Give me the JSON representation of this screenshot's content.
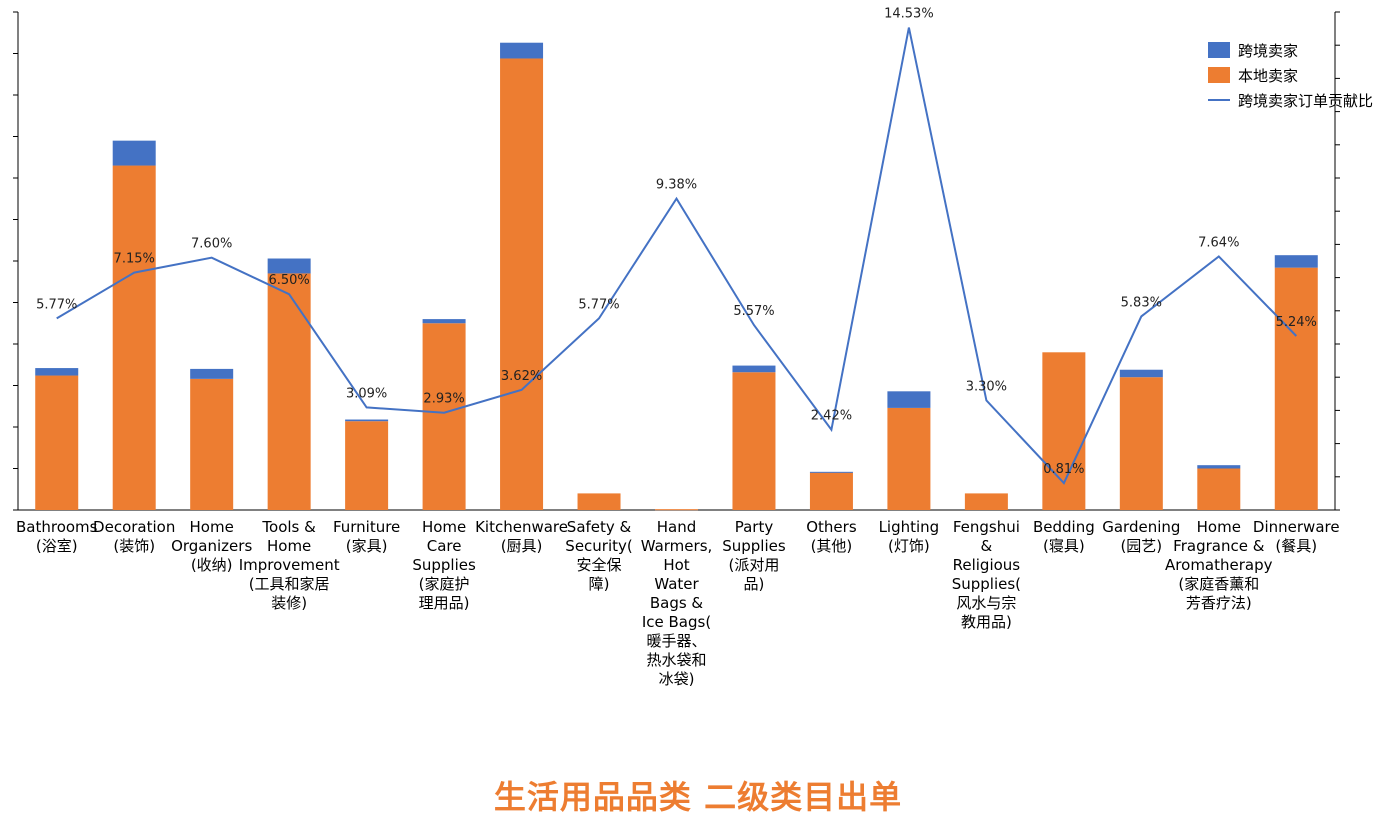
{
  "chart_data": {
    "type": "bar",
    "stacked": true,
    "title": "生活用品品类 二级类目出单",
    "categories": [
      "Bathrooms (浴室)",
      "Decoration (装饰)",
      "Home Organizers (收纳)",
      "Tools & Home Improvement (工具和家居装修)",
      "Furniture (家具)",
      "Home Care Supplies (家庭护理用品)",
      "Kitchenware (厨具)",
      "Safety & Security( 安全保障)",
      "Hand Warmers, Hot Water Bags & Ice Bags( 暖手器、热水袋和冰袋)",
      "Party Supplies (派对用品)",
      "Others (其他)",
      "Lighting (灯饰)",
      "Fengshui & Religious Supplies( 风水与宗教用品)",
      "Bedding (寝具)",
      "Gardening (园艺)",
      "Home Fragrance & Aromatherapy (家庭香薰和芳香疗法)",
      "Dinnerware (餐具)"
    ],
    "category_lines": [
      [
        "Bathrooms",
        "(浴室)"
      ],
      [
        "Decoration",
        "(装饰)"
      ],
      [
        "Home",
        "Organizers",
        "(收纳)"
      ],
      [
        "Tools &",
        "Home",
        "Improvement",
        "(工具和家居",
        "装修)"
      ],
      [
        "Furniture",
        "(家具)"
      ],
      [
        "Home",
        "Care",
        "Supplies",
        "(家庭护",
        "理用品)"
      ],
      [
        "Kitchenware",
        "(厨具)"
      ],
      [
        "Safety &",
        "Security(",
        "安全保",
        "障)"
      ],
      [
        "Hand",
        "Warmers,",
        "Hot",
        "Water",
        "Bags &",
        "Ice Bags(",
        "暖手器、",
        "热水袋和",
        "冰袋)"
      ],
      [
        "Party",
        "Supplies",
        "(派对用",
        "品)"
      ],
      [
        "Others",
        "(其他)"
      ],
      [
        "Lighting",
        "(灯饰)"
      ],
      [
        "Fengshui",
        "&",
        "Religious",
        "Supplies(",
        "风水与宗",
        "教用品)"
      ],
      [
        "Bedding",
        "(寝具)"
      ],
      [
        "Gardening",
        "(园艺)"
      ],
      [
        "Home",
        "Fragrance &",
        "Aromatherapy",
        "(家庭香薰和",
        "芳香疗法)"
      ],
      [
        "Dinnerware",
        "(餐具)"
      ]
    ],
    "series": [
      {
        "name": "本地卖家",
        "kind": "bar",
        "color": "#ed7d31",
        "values": [
          162,
          415,
          158,
          285,
          107,
          225,
          544,
          20,
          1,
          166,
          45,
          123,
          20,
          190,
          160,
          50,
          292
        ]
      },
      {
        "name": "跨境卖家",
        "kind": "bar",
        "color": "#4472c4",
        "values": [
          9,
          30,
          12,
          18,
          2,
          5,
          19,
          0,
          0,
          8,
          1,
          20,
          0,
          0,
          9,
          4,
          15
        ]
      },
      {
        "name": "跨境卖家订单贡献比",
        "kind": "line",
        "color": "#4472c4",
        "values": [
          5.77,
          7.15,
          7.6,
          6.5,
          3.09,
          2.93,
          3.62,
          5.77,
          9.38,
          5.57,
          2.42,
          14.53,
          3.3,
          0.81,
          5.83,
          7.64,
          5.24
        ],
        "labels": [
          "5.77%",
          "7.15%",
          "7.60%",
          "6.50%",
          "3.09%",
          "2.93%",
          "3.62%",
          "5.77%",
          "9.38%",
          "5.57%",
          "2.42%",
          "14.53%",
          "3.30%",
          "0.81%",
          "5.83%",
          "7.64%",
          "5.24%"
        ]
      }
    ],
    "ylim_left": [
      0,
      600
    ],
    "ylim_right": [
      0,
      15
    ],
    "legend_position": "top-right",
    "grid": false
  }
}
